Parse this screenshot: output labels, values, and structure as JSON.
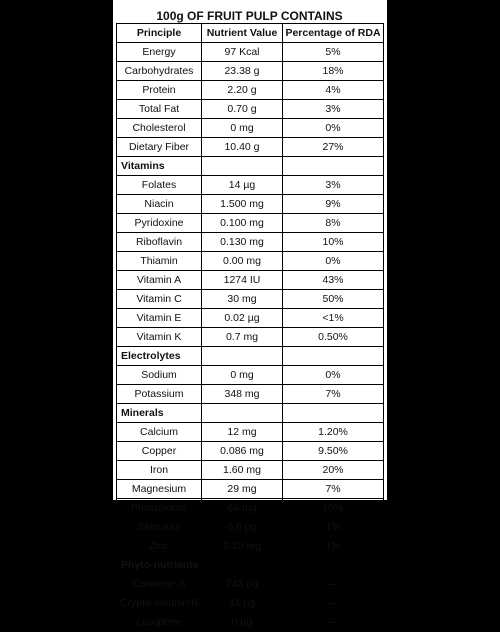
{
  "title": "100g OF FRUIT PULP CONTAINS",
  "headers": [
    "Principle",
    "Nutrient Value",
    "Percentage of RDA"
  ],
  "rows": [
    {
      "name": "Energy",
      "value": "97 Kcal",
      "pct": "5%"
    },
    {
      "name": "Carbohydrates",
      "value": "23.38 g",
      "pct": "18%"
    },
    {
      "name": "Protein",
      "value": "2.20 g",
      "pct": "4%"
    },
    {
      "name": "Total Fat",
      "value": "0.70 g",
      "pct": "3%"
    },
    {
      "name": "Cholesterol",
      "value": "0 mg",
      "pct": "0%"
    },
    {
      "name": "Dietary Fiber",
      "value": "10.40 g",
      "pct": "27%"
    },
    {
      "section": "Vitamins"
    },
    {
      "name": "Folates",
      "value": "14 µg",
      "pct": "3%"
    },
    {
      "name": "Niacin",
      "value": "1.500 mg",
      "pct": "9%"
    },
    {
      "name": "Pyridoxine",
      "value": "0.100 mg",
      "pct": "8%"
    },
    {
      "name": "Riboflavin",
      "value": "0.130 mg",
      "pct": "10%"
    },
    {
      "name": "Thiamin",
      "value": "0.00 mg",
      "pct": "0%"
    },
    {
      "name": "Vitamin A",
      "value": "1274 IU",
      "pct": "43%"
    },
    {
      "name": "Vitamin C",
      "value": "30 mg",
      "pct": "50%"
    },
    {
      "name": "Vitamin E",
      "value": "0.02 µg",
      "pct": "<1%"
    },
    {
      "name": "Vitamin K",
      "value": "0.7 mg",
      "pct": "0.50%"
    },
    {
      "section": "Electrolytes"
    },
    {
      "name": "Sodium",
      "value": "0 mg",
      "pct": "0%"
    },
    {
      "name": "Potassium",
      "value": "348 mg",
      "pct": "7%"
    },
    {
      "section": "Minerals"
    },
    {
      "name": "Calcium",
      "value": "12 mg",
      "pct": "1.20%"
    },
    {
      "name": "Copper",
      "value": "0.086 mg",
      "pct": "9.50%"
    },
    {
      "name": "Iron",
      "value": "1.60 mg",
      "pct": "20%"
    },
    {
      "name": "Magnesium",
      "value": "29 mg",
      "pct": "7%"
    },
    {
      "name": "Phosphorus",
      "value": "68 mg",
      "pct": "10%"
    },
    {
      "name": "Selenium",
      "value": "0.6 µg",
      "pct": "1%"
    },
    {
      "name": "Zinc",
      "value": "0.10 mg",
      "pct": "1%"
    },
    {
      "section": "Phyto-nutrients"
    },
    {
      "name": "Carotene-ß",
      "value": "743 µg",
      "pct": "—"
    },
    {
      "name": "Crypto-xanthin-ß",
      "value": "41 µg",
      "pct": "—"
    },
    {
      "name": "Lycopene",
      "value": "0 µg",
      "pct": "—"
    }
  ]
}
